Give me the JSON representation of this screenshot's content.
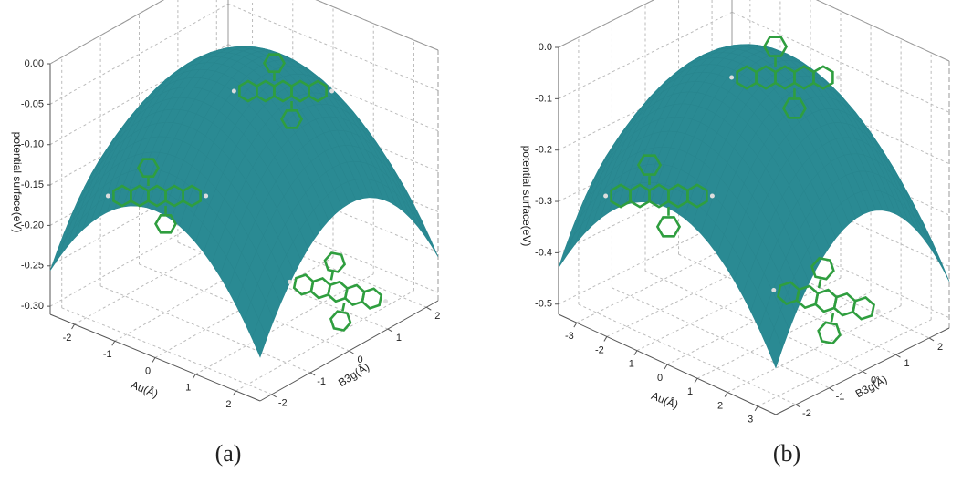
{
  "chart_data": [
    {
      "type": "surface",
      "caption": "(a)",
      "zlabel": "potential surface(eV)",
      "xlabel": "Au(Å)",
      "ylabel": "B3g(Å)",
      "color": "#5ccbd8",
      "underside_color": "#2a8a93",
      "grid": true,
      "xlim": [
        -2.6,
        2.6
      ],
      "xticks": [
        -2,
        -1,
        0,
        1,
        2
      ],
      "ylim": [
        -2.3,
        2.3
      ],
      "yticks": [
        -2,
        -1,
        0,
        1,
        2
      ],
      "zlim": [
        -0.31,
        0
      ],
      "zticks": [
        {
          "value": 0,
          "label": "0.00"
        },
        -0.05,
        {
          "value": -0.1,
          "label": "-0.10"
        },
        -0.15,
        {
          "value": -0.2,
          "label": "-0.20"
        },
        -0.25,
        {
          "value": -0.3,
          "label": "-0.30"
        }
      ]
    },
    {
      "type": "surface",
      "caption": "(b)",
      "zlabel": "potential surface(eV)",
      "xlabel": "Au(Å)",
      "ylabel": "B3g(Å)",
      "color": "#5ccbd8",
      "underside_color": "#2a8a93",
      "grid": true,
      "xlim": [
        -3.6,
        3.6
      ],
      "xticks": [
        -3,
        -2,
        -1,
        0,
        1,
        2,
        3
      ],
      "ylim": [
        -2.6,
        2.6
      ],
      "yticks": [
        -2,
        -1,
        0,
        1,
        2
      ],
      "zlim": [
        -0.52,
        0
      ],
      "zticks": [
        {
          "value": 0,
          "label": "0.0"
        },
        -0.1,
        -0.2,
        -0.3,
        -0.4,
        -0.5
      ]
    }
  ]
}
